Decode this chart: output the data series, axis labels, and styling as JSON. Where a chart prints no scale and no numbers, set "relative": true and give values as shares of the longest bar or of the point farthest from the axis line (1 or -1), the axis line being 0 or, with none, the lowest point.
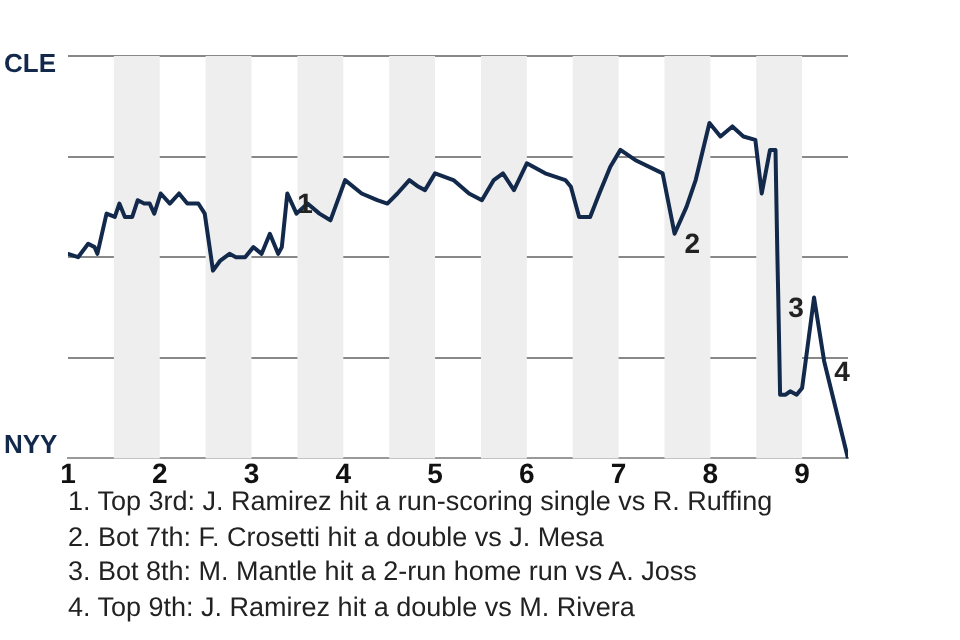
{
  "chart_data": {
    "type": "line",
    "relative": true,
    "x": [
      1,
      1.11,
      1.22,
      1.29,
      1.32,
      1.42,
      1.51,
      1.56,
      1.62,
      1.7,
      1.76,
      1.83,
      1.89,
      1.94,
      2.01,
      2.11,
      2.21,
      2.3,
      2.42,
      2.49,
      2.58,
      2.66,
      2.76,
      2.83,
      2.93,
      3.02,
      3.11,
      3.2,
      3.29,
      3.33,
      3.39,
      3.49,
      3.61,
      3.74,
      3.86,
      4.02,
      4.2,
      4.37,
      4.48,
      4.59,
      4.72,
      4.82,
      4.89,
      5,
      5.2,
      5.37,
      5.51,
      5.64,
      5.74,
      5.86,
      6,
      6.2,
      6.42,
      6.48,
      6.57,
      6.69,
      6.79,
      6.91,
      7.02,
      7.18,
      7.48,
      7.61,
      7.74,
      7.84,
      7.99,
      8.11,
      8.24,
      8.36,
      8.49,
      8.56,
      8.65,
      8.71,
      8.73,
      8.74,
      8.76,
      8.82,
      8.87,
      8.94,
      9,
      9.13,
      9.24,
      9.5
    ],
    "series": [
      {
        "color": "#13294b",
        "values": [
          0.61,
          0.6,
          0.64,
          0.63,
          0.61,
          0.73,
          0.72,
          0.76,
          0.72,
          0.72,
          0.77,
          0.76,
          0.76,
          0.73,
          0.79,
          0.76,
          0.79,
          0.76,
          0.76,
          0.73,
          0.56,
          0.59,
          0.61,
          0.6,
          0.6,
          0.63,
          0.61,
          0.67,
          0.61,
          0.63,
          0.79,
          0.73,
          0.76,
          0.73,
          0.71,
          0.83,
          0.79,
          0.77,
          0.76,
          0.79,
          0.83,
          0.81,
          0.8,
          0.85,
          0.83,
          0.79,
          0.77,
          0.83,
          0.85,
          0.8,
          0.88,
          0.85,
          0.83,
          0.81,
          0.72,
          0.72,
          0.79,
          0.87,
          0.92,
          0.89,
          0.85,
          0.67,
          0.75,
          0.83,
          1,
          0.96,
          0.99,
          0.96,
          0.95,
          0.79,
          0.92,
          0.92,
          0.61,
          0.48,
          0.19,
          0.19,
          0.2,
          0.19,
          0.21,
          0.48,
          0.29,
          0
        ]
      }
    ],
    "xlim": [
      1,
      9.5
    ],
    "xticks": [
      1,
      2,
      3,
      4,
      5,
      6,
      7,
      8,
      9
    ],
    "bands": [
      {
        "axis": "x",
        "from": 1.5,
        "to": 2,
        "color": "#eeeeee"
      },
      {
        "axis": "x",
        "from": 2.5,
        "to": 3,
        "color": "#eeeeee"
      },
      {
        "axis": "x",
        "from": 3.5,
        "to": 4,
        "color": "#eeeeee"
      },
      {
        "axis": "x",
        "from": 4.5,
        "to": 5,
        "color": "#eeeeee"
      },
      {
        "axis": "x",
        "from": 5.5,
        "to": 6,
        "color": "#eeeeee"
      },
      {
        "axis": "x",
        "from": 6.5,
        "to": 7,
        "color": "#eeeeee"
      },
      {
        "axis": "x",
        "from": 7.5,
        "to": 8,
        "color": "#eeeeee"
      },
      {
        "axis": "x",
        "from": 8.5,
        "to": 9,
        "color": "#eeeeee"
      }
    ],
    "annotations": [
      "CLE",
      "NYY",
      {
        "text": "1",
        "x": 3.39,
        "y": 0.79
      },
      {
        "text": "2",
        "x": 7.61,
        "y": 0.67
      },
      {
        "text": "3",
        "x": 8.74,
        "y": 0.48
      },
      {
        "text": "4",
        "x": 9.24,
        "y": 0.29
      },
      "1. Top 3rd: J. Ramirez hit a run-scoring single vs R. Ruffing",
      "2. Bot 7th: F. Crosetti hit a double vs J. Mesa",
      "3. Bot 8th: M. Mantle hit a 2-run home run vs A. Joss",
      "4. Top 9th: J. Ramirez hit a double vs M. Rivera"
    ],
    "grid": "y",
    "legend": false,
    "marker": "none",
    "line_style": "solid"
  }
}
